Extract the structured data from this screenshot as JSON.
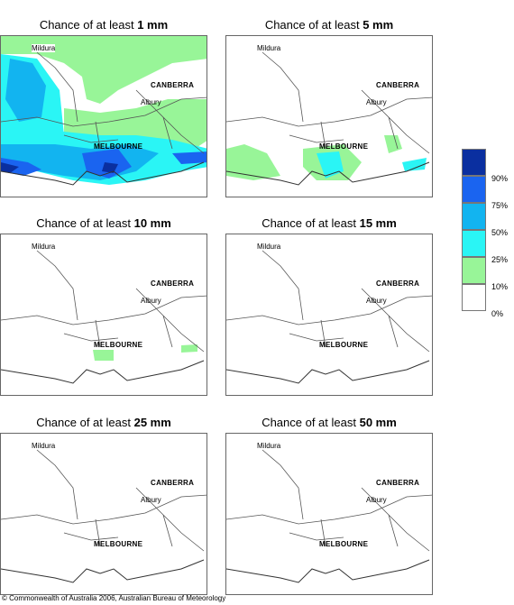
{
  "panels": [
    {
      "prefix": "Chance of at least ",
      "amount": "1 mm"
    },
    {
      "prefix": "Chance of at least ",
      "amount": "5 mm"
    },
    {
      "prefix": "Chance of at least ",
      "amount": "10 mm"
    },
    {
      "prefix": "Chance of at least ",
      "amount": "15 mm"
    },
    {
      "prefix": "Chance of at least ",
      "amount": "25 mm"
    },
    {
      "prefix": "Chance of at least ",
      "amount": "50 mm"
    }
  ],
  "places": {
    "mildura": "Mildura",
    "canberra": "CANBERRA",
    "albury": "Albury",
    "melbourne": "MELBOURNE"
  },
  "legend": {
    "labels": [
      "90%",
      "75%",
      "50%",
      "25%",
      "10%",
      "0%"
    ],
    "colors": [
      "#0a2fa0",
      "#1a64f0",
      "#12b4f0",
      "#2af5f5",
      "#98f598",
      "#ffffff"
    ]
  },
  "copyright": "© Commonwealth of Australia 2006, Australian Bureau of Meteorology"
}
